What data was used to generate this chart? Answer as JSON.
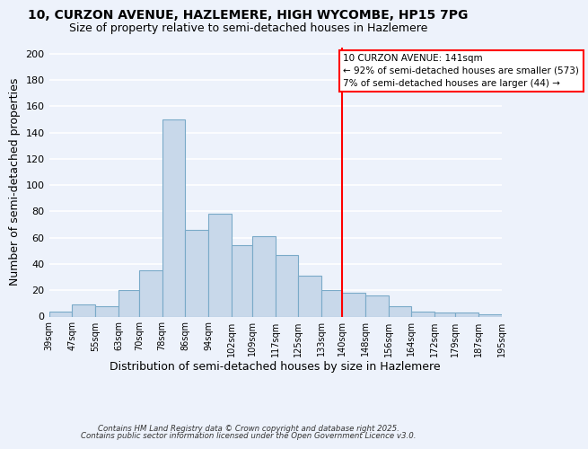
{
  "title": "10, CURZON AVENUE, HAZLEMERE, HIGH WYCOMBE, HP15 7PG",
  "subtitle": "Size of property relative to semi-detached houses in Hazlemere",
  "xlabel": "Distribution of semi-detached houses by size in Hazlemere",
  "ylabel": "Number of semi-detached properties",
  "bar_color": "#c8d8ea",
  "bar_edge_color": "#7aaac8",
  "background_color": "#edf2fb",
  "grid_color": "white",
  "vline_x": 140,
  "vline_color": "red",
  "bin_edges": [
    39,
    47,
    55,
    63,
    70,
    78,
    86,
    94,
    102,
    109,
    117,
    125,
    133,
    140,
    148,
    156,
    164,
    172,
    179,
    187,
    195
  ],
  "bin_labels": [
    "39sqm",
    "47sqm",
    "55sqm",
    "63sqm",
    "70sqm",
    "78sqm",
    "86sqm",
    "94sqm",
    "102sqm",
    "109sqm",
    "117sqm",
    "125sqm",
    "133sqm",
    "140sqm",
    "148sqm",
    "156sqm",
    "164sqm",
    "172sqm",
    "179sqm",
    "187sqm",
    "195sqm"
  ],
  "counts": [
    4,
    9,
    8,
    20,
    35,
    150,
    66,
    78,
    54,
    61,
    47,
    31,
    20,
    18,
    16,
    8,
    4,
    3,
    3,
    2
  ],
  "ylim": [
    0,
    205
  ],
  "yticks": [
    0,
    20,
    40,
    60,
    80,
    100,
    120,
    140,
    160,
    180,
    200
  ],
  "annotation_title": "10 CURZON AVENUE: 141sqm",
  "annotation_line1": "← 92% of semi-detached houses are smaller (573)",
  "annotation_line2": "7% of semi-detached houses are larger (44) →",
  "annotation_box_color": "white",
  "annotation_border_color": "red",
  "footnote1": "Contains HM Land Registry data © Crown copyright and database right 2025.",
  "footnote2": "Contains public sector information licensed under the Open Government Licence v3.0."
}
